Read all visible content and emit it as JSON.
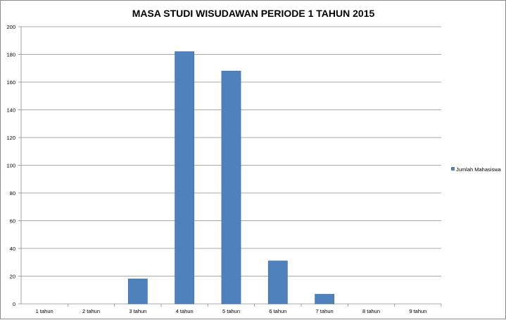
{
  "chart_data": {
    "type": "bar",
    "title": "MASA STUDI WISUDAWAN PERIODE 1 TAHUN 2015",
    "xlabel": "",
    "ylabel": "",
    "categories": [
      "1 tahun",
      "2 tahun",
      "3 tahun",
      "4 tahun",
      "5 tahun",
      "6 tahun",
      "7 tahun",
      "8 tahun",
      "9 tahun"
    ],
    "series": [
      {
        "name": "Jumlah Mahasiswa",
        "values": [
          0,
          0,
          18,
          182,
          168,
          31,
          7,
          0,
          0
        ],
        "color": "#4f81bd"
      }
    ],
    "ylim": [
      0,
      200
    ],
    "yticks": [
      0,
      20,
      40,
      60,
      80,
      100,
      120,
      140,
      160,
      180,
      200
    ],
    "grid": true,
    "legend": "right"
  }
}
